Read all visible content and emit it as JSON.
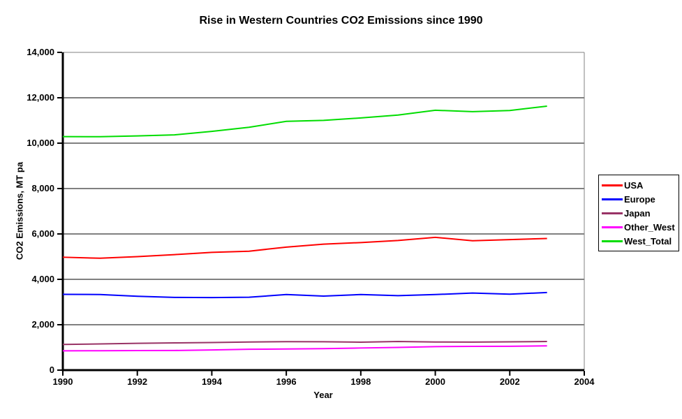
{
  "chart_data": {
    "type": "line",
    "title": "Rise in Western Countries CO2 Emissions since 1990",
    "xlabel": "Year",
    "ylabel": "CO2 Emissions, MT pa",
    "x": [
      1990,
      1991,
      1992,
      1993,
      1994,
      1995,
      1996,
      1997,
      1998,
      1999,
      2000,
      2001,
      2002,
      2003
    ],
    "series": [
      {
        "name": "USA",
        "color": "#FF0000",
        "values": [
          4975,
          4930,
          5000,
          5090,
          5190,
          5240,
          5420,
          5550,
          5620,
          5710,
          5850,
          5700,
          5750,
          5800
        ]
      },
      {
        "name": "Europe",
        "color": "#0000FF",
        "values": [
          3340,
          3330,
          3255,
          3205,
          3195,
          3210,
          3330,
          3260,
          3330,
          3280,
          3330,
          3395,
          3345,
          3420
        ]
      },
      {
        "name": "Japan",
        "color": "#993366",
        "values": [
          1130,
          1155,
          1180,
          1200,
          1215,
          1240,
          1255,
          1250,
          1230,
          1260,
          1240,
          1235,
          1245,
          1260
        ]
      },
      {
        "name": "Other_West",
        "color": "#FF00FF",
        "values": [
          850,
          855,
          860,
          865,
          890,
          920,
          930,
          945,
          975,
          1000,
          1035,
          1045,
          1050,
          1070
        ]
      },
      {
        "name": "West_Total",
        "color": "#00DD00",
        "values": [
          10290,
          10285,
          10320,
          10365,
          10520,
          10700,
          10960,
          11005,
          11110,
          11240,
          11450,
          11390,
          11440,
          11630
        ]
      }
    ],
    "xlim": [
      1990,
      2004
    ],
    "ylim": [
      0,
      14000
    ],
    "xticks": [
      1990,
      1992,
      1994,
      1996,
      1998,
      2000,
      2002,
      2004
    ],
    "xtick_labels": [
      "1990",
      "1992",
      "1994",
      "1996",
      "1998",
      "2000",
      "2002",
      "2004"
    ],
    "yticks": [
      0,
      2000,
      4000,
      6000,
      8000,
      10000,
      12000,
      14000
    ],
    "ytick_labels": [
      "0",
      "2,000",
      "4,000",
      "6,000",
      "8,000",
      "10,000",
      "12,000",
      "14,000"
    ],
    "grid": "horizontal",
    "legend_position": "right",
    "colors": {
      "gridline": "#000000",
      "axis": "#000000",
      "plot_border": "#808080",
      "text": "#000000",
      "background": "#FFFFFF"
    }
  }
}
